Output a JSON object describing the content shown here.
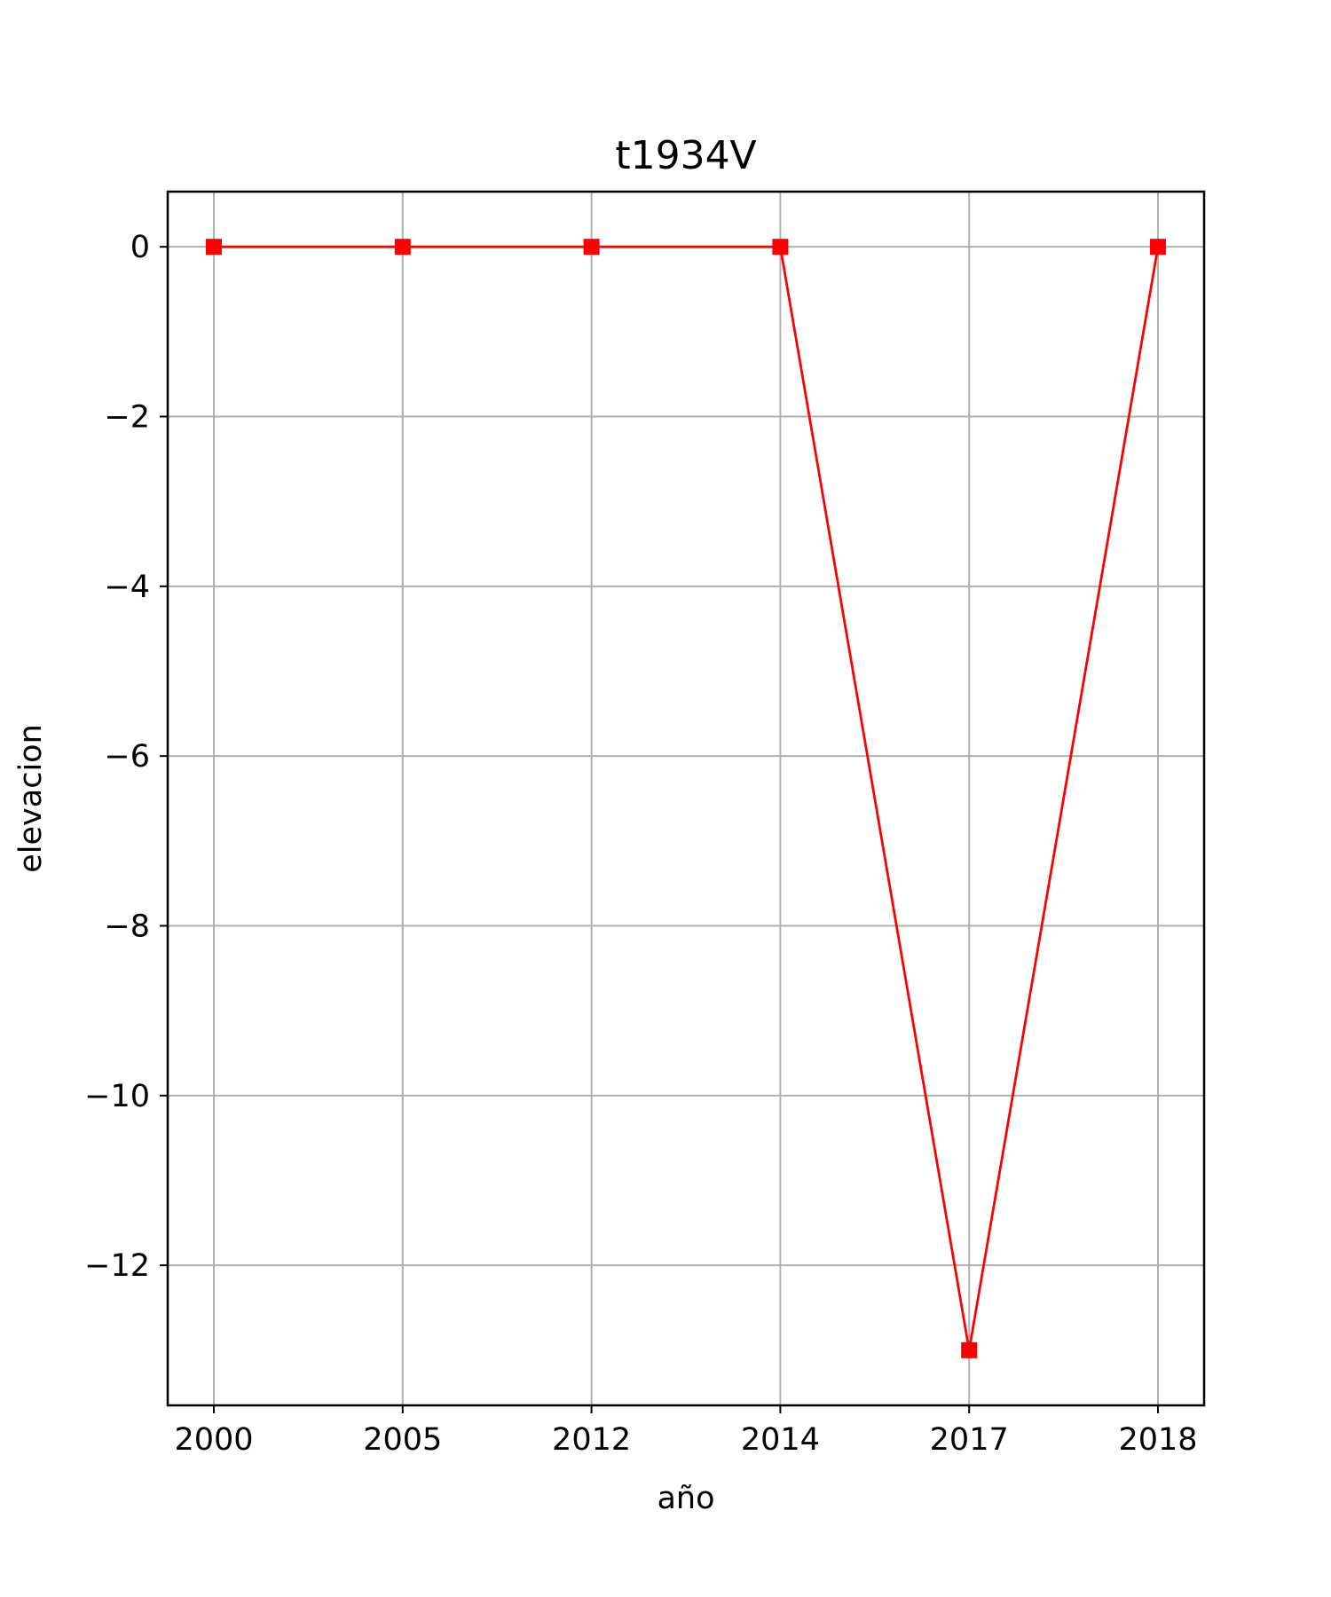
{
  "chart_data": {
    "type": "line",
    "title": "t1934V",
    "xlabel": "año",
    "ylabel": "elevacion",
    "categories": [
      "2000",
      "2005",
      "2012",
      "2014",
      "2017",
      "2018"
    ],
    "series": [
      {
        "values": [
          0,
          0,
          0,
          0,
          -13,
          0
        ],
        "color": "#ff0000",
        "marker": "square"
      }
    ],
    "yticks": [
      0,
      -2,
      -4,
      -6,
      -8,
      -10,
      -12
    ],
    "ytick_labels": [
      "0",
      "−2",
      "−4",
      "−6",
      "−8",
      "−10",
      "−12"
    ],
    "ylim": [
      -13.65,
      0.65
    ],
    "grid": true
  }
}
